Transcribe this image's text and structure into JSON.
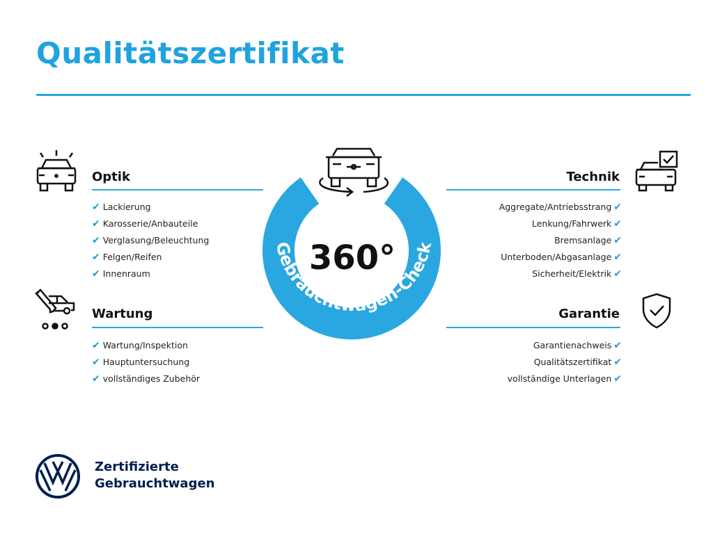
{
  "title": "Qualitätszertifikat",
  "center": {
    "degrees": "360°",
    "ring_text": "Gebrauchtwagen-Check"
  },
  "sections": {
    "optik": {
      "title": "Optik",
      "items": [
        "Lackierung",
        "Karosserie/Anbauteile",
        "Verglasung/Beleuchtung",
        "Felgen/Reifen",
        "Innenraum"
      ]
    },
    "wartung": {
      "title": "Wartung",
      "items": [
        "Wartung/Inspektion",
        "Hauptuntersuchung",
        "vollständiges Zubehör"
      ]
    },
    "technik": {
      "title": "Technik",
      "items": [
        "Aggregate/Antriebsstrang",
        "Lenkung/Fahrwerk",
        "Bremsanlage",
        "Unterboden/Abgasanlage",
        "Sicherheit/Elektrik"
      ]
    },
    "garantie": {
      "title": "Garantie",
      "items": [
        "Garantienachweis",
        "Qualitätszertifikat",
        "vollständige Unterlagen"
      ]
    }
  },
  "check_mark": "✔",
  "logo": {
    "line1": "Zertifizierte",
    "line2": "Gebrauchtwagen",
    "brand_text": "VW"
  },
  "colors": {
    "accent": "#2aa7e0",
    "title": "#1fa3e0",
    "navy": "#001e50"
  }
}
